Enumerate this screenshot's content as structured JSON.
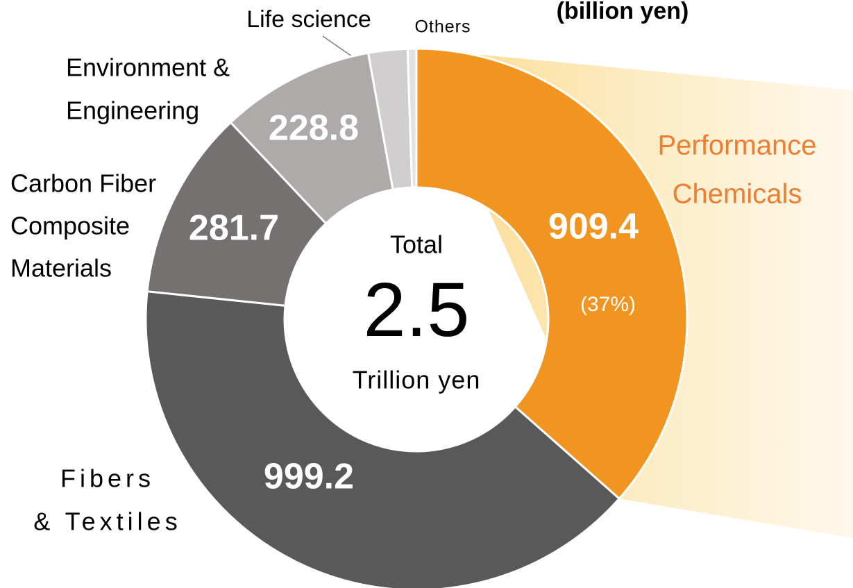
{
  "chart_data": {
    "type": "donut",
    "title": "(billion yen)",
    "categories": [
      [
        "Performance",
        "Chemicals"
      ],
      [
        "Fibers",
        "& Textiles"
      ],
      [
        "Carbon Fiber",
        "Composite",
        "Materials"
      ],
      [
        "Environment &",
        "Engineering"
      ],
      [
        "Life science"
      ],
      [
        "Others"
      ]
    ],
    "values": [
      909.4,
      999.2,
      281.7,
      228.8,
      58,
      13
    ],
    "colors": [
      "#f29420",
      "#595959",
      "#767171",
      "#aeaaaa",
      "#d0cece",
      "#e2e2e2"
    ],
    "annotation": "(37%)",
    "total": {
      "label": "Total",
      "value": 2.5,
      "unit": "Trillion yen"
    }
  }
}
